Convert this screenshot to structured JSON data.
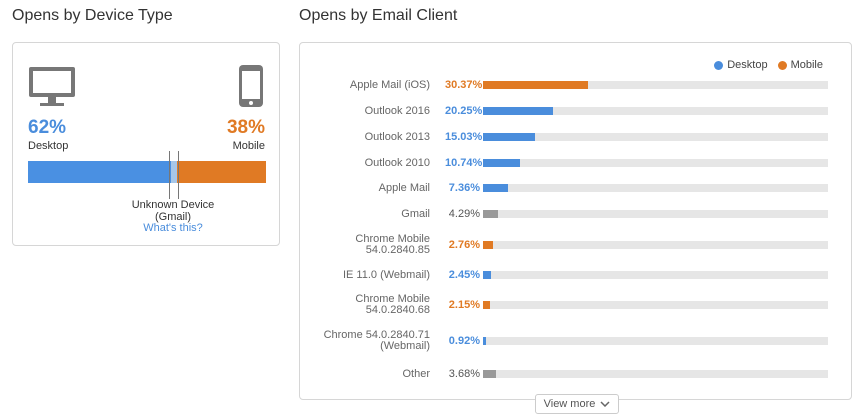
{
  "device_section": {
    "title": "Opens by Device Type",
    "desktop_pct": "62%",
    "desktop_label": "Desktop",
    "mobile_pct": "38%",
    "mobile_label": "Mobile",
    "unknown_label": "Unknown Device\n(Gmail)",
    "whats_this": "What's this?",
    "split": {
      "desktop": 0.6,
      "unknown": 0.025,
      "mobile": 0.375
    }
  },
  "client_section": {
    "title": "Opens by Email Client",
    "legend": [
      {
        "name": "Desktop",
        "color": "#4a8ddc"
      },
      {
        "name": "Mobile",
        "color": "#e07a24"
      }
    ],
    "view_more": "View more"
  },
  "colors": {
    "desktop": "#4a8ddc",
    "mobile": "#e07a24",
    "other": "#999999",
    "track": "#e6e6e6"
  },
  "chart_data": {
    "type": "bar",
    "orientation": "horizontal",
    "title": "Opens by Email Client",
    "xlim": [
      0,
      100
    ],
    "legend_position": "top-right",
    "rows": [
      {
        "name": "Apple Mail (iOS)",
        "value": 30.37,
        "label": "30.37%",
        "kind": "mobile"
      },
      {
        "name": "Outlook 2016",
        "value": 20.25,
        "label": "20.25%",
        "kind": "desktop"
      },
      {
        "name": "Outlook 2013",
        "value": 15.03,
        "label": "15.03%",
        "kind": "desktop"
      },
      {
        "name": "Outlook 2010",
        "value": 10.74,
        "label": "10.74%",
        "kind": "desktop"
      },
      {
        "name": "Apple Mail",
        "value": 7.36,
        "label": "7.36%",
        "kind": "desktop"
      },
      {
        "name": "Gmail",
        "value": 4.29,
        "label": "4.29%",
        "kind": "other"
      },
      {
        "name": "Chrome Mobile\n54.0.2840.85",
        "value": 2.76,
        "label": "2.76%",
        "kind": "mobile"
      },
      {
        "name": "IE 11.0 (Webmail)",
        "value": 2.45,
        "label": "2.45%",
        "kind": "desktop"
      },
      {
        "name": "Chrome Mobile\n54.0.2840.68",
        "value": 2.15,
        "label": "2.15%",
        "kind": "mobile"
      },
      {
        "name": "Chrome 54.0.2840.71\n(Webmail)",
        "value": 0.92,
        "label": "0.92%",
        "kind": "desktop"
      },
      {
        "name": "Other",
        "value": 3.68,
        "label": "3.68%",
        "kind": "other"
      }
    ]
  }
}
